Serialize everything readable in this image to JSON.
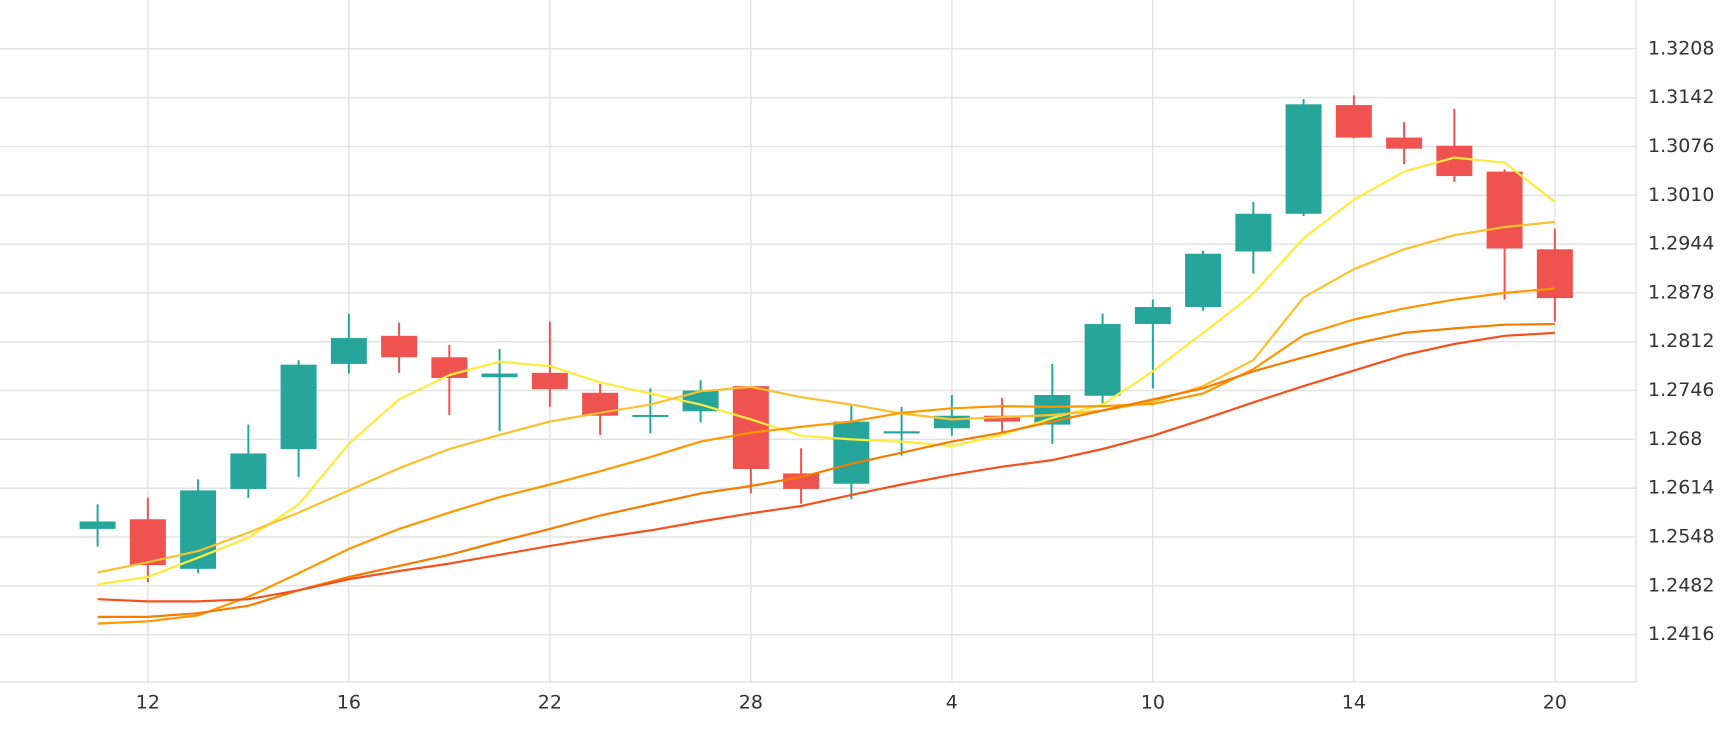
{
  "chart_data": {
    "type": "candlestick",
    "categories": [
      null,
      "12",
      null,
      null,
      null,
      "16",
      null,
      null,
      null,
      "22",
      null,
      null,
      null,
      "28",
      null,
      null,
      null,
      "4",
      null,
      null,
      null,
      "10",
      null,
      null,
      null,
      "14",
      null,
      null,
      null,
      "20"
    ],
    "open": [
      1.2559,
      1.2572,
      1.2505,
      1.2613,
      1.2667,
      1.2782,
      1.282,
      1.2791,
      1.2764,
      1.277,
      1.2743,
      1.2712,
      1.2718,
      1.2752,
      1.2634,
      1.262,
      1.2688,
      1.2695,
      1.2712,
      1.27,
      1.2739,
      1.2836,
      1.2859,
      1.2934,
      1.2985,
      1.3132,
      1.3088,
      1.3077,
      1.3042,
      1.2937
    ],
    "high": [
      1.2592,
      1.2601,
      1.2626,
      1.27,
      1.2787,
      1.285,
      1.2838,
      1.2808,
      1.2802,
      1.2839,
      1.2755,
      1.2749,
      1.276,
      1.2752,
      1.2668,
      1.2728,
      1.2724,
      1.274,
      1.2736,
      1.2782,
      1.285,
      1.2869,
      1.2935,
      1.3001,
      1.314,
      1.3145,
      1.3109,
      1.3127,
      1.3045,
      1.2965
    ],
    "low": [
      1.2535,
      1.2487,
      1.2499,
      1.2601,
      1.2629,
      1.2769,
      1.277,
      1.2713,
      1.2691,
      1.2724,
      1.2686,
      1.2688,
      1.2703,
      1.2607,
      1.2593,
      1.2599,
      1.2658,
      1.2685,
      1.2689,
      1.2674,
      1.2725,
      1.2749,
      1.2854,
      1.2904,
      1.2982,
      1.3087,
      1.3052,
      1.3028,
      1.2869,
      1.2839
    ],
    "close": [
      1.2569,
      1.251,
      1.2611,
      1.2661,
      1.2781,
      1.2817,
      1.2791,
      1.2763,
      1.2769,
      1.2748,
      1.2712,
      1.2713,
      1.2746,
      1.264,
      1.2613,
      1.2704,
      1.2691,
      1.2712,
      1.2704,
      1.274,
      1.2836,
      1.2859,
      1.2931,
      1.2985,
      1.3133,
      1.3088,
      1.3073,
      1.3036,
      1.2938,
      1.2871
    ],
    "up_color": "#26a69a",
    "down_color": "#ef5350",
    "overlays": [
      {
        "color": "#ffeb3b",
        "values": [
          1.2484,
          1.2494,
          1.252,
          1.2547,
          1.2592,
          1.2674,
          1.2734,
          1.2767,
          1.2785,
          1.2779,
          1.2757,
          1.2742,
          1.2727,
          1.2707,
          1.2685,
          1.268,
          1.2677,
          1.2671,
          1.2686,
          1.2709,
          1.2727,
          1.2772,
          1.2824,
          1.2877,
          1.2952,
          1.3004,
          1.3042,
          1.3061,
          1.3054,
          1.3001
        ]
      },
      {
        "color": "#fbc02d",
        "values": [
          1.25,
          1.2514,
          1.2529,
          1.2554,
          1.2581,
          1.2611,
          1.2641,
          1.2667,
          1.2686,
          1.2704,
          1.2716,
          1.2727,
          1.2745,
          1.2751,
          1.2737,
          1.2727,
          1.2715,
          1.2707,
          1.271,
          1.2713,
          1.2719,
          1.2731,
          1.2752,
          1.2787,
          1.2872,
          1.291,
          1.2937,
          1.2956,
          1.2967,
          1.2974
        ]
      },
      {
        "color": "#ff9800",
        "values": [
          1.2431,
          1.2434,
          1.2442,
          1.2467,
          1.2499,
          1.2532,
          1.2559,
          1.2581,
          1.2602,
          1.2619,
          1.2637,
          1.2656,
          1.2677,
          1.2689,
          1.2697,
          1.2704,
          1.2716,
          1.2722,
          1.2725,
          1.2724,
          1.2725,
          1.2728,
          1.2742,
          1.2775,
          1.2821,
          1.2842,
          1.2857,
          1.2869,
          1.2878,
          1.2884
        ]
      },
      {
        "color": "#f57c00",
        "values": [
          1.244,
          1.244,
          1.2445,
          1.2455,
          1.2476,
          1.2494,
          1.2509,
          1.2524,
          1.2542,
          1.2559,
          1.2577,
          1.2592,
          1.2607,
          1.2617,
          1.2629,
          1.2647,
          1.2662,
          1.2677,
          1.2689,
          1.2704,
          1.2719,
          1.2734,
          1.2749,
          1.2772,
          1.2791,
          1.2809,
          1.2824,
          1.283,
          1.2835,
          1.2836
        ]
      },
      {
        "color": "#f4511e",
        "values": [
          1.2464,
          1.2461,
          1.2461,
          1.2464,
          1.2476,
          1.2491,
          1.2502,
          1.2512,
          1.2524,
          1.2536,
          1.2547,
          1.2557,
          1.2569,
          1.258,
          1.259,
          1.2605,
          1.2619,
          1.2632,
          1.2643,
          1.2652,
          1.2667,
          1.2685,
          1.2707,
          1.273,
          1.2752,
          1.2773,
          1.2794,
          1.2809,
          1.282,
          1.2824
        ]
      }
    ],
    "ylim": [
      1.2352,
      1.3274
    ],
    "yticks": [
      1.2416,
      1.2482,
      1.2548,
      1.2614,
      1.268,
      1.2746,
      1.2812,
      1.2878,
      1.2944,
      {
        "value": 1.301,
        "label": "1.3010"
      },
      1.3076,
      1.3142,
      1.3208
    ],
    "grid": true
  }
}
